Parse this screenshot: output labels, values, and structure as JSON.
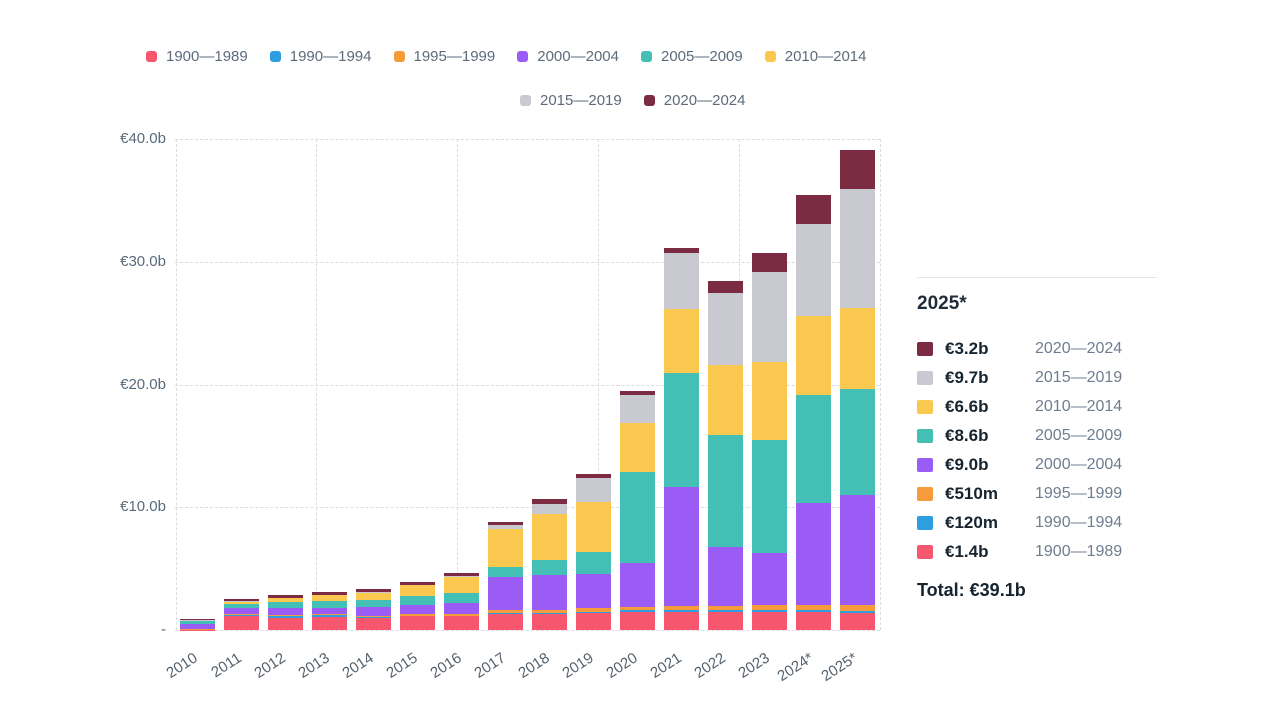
{
  "chart_data": {
    "type": "bar",
    "stacked": true,
    "unit": "EUR (billions)",
    "categories": [
      "2010",
      "2011",
      "2012",
      "2013",
      "2014",
      "2015",
      "2016",
      "2017",
      "2018",
      "2019",
      "2020",
      "2021",
      "2022",
      "2023",
      "2024*",
      "2025*"
    ],
    "series": [
      {
        "name": "1900—1989",
        "color": "#f7566f",
        "values": [
          0.03,
          1.1,
          1.0,
          1.05,
          0.95,
          1.1,
          1.1,
          1.3,
          1.3,
          1.4,
          1.5,
          1.5,
          1.5,
          1.5,
          1.5,
          1.4
        ]
      },
      {
        "name": "1990—1994",
        "color": "#2d9ee0",
        "values": [
          0.01,
          0.15,
          0.18,
          0.18,
          0.15,
          0.08,
          0.08,
          0.08,
          0.08,
          0.1,
          0.1,
          0.12,
          0.12,
          0.12,
          0.12,
          0.12
        ]
      },
      {
        "name": "1995—1999",
        "color": "#f69b3c",
        "values": [
          0.02,
          0.05,
          0.05,
          0.05,
          0.08,
          0.1,
          0.12,
          0.25,
          0.25,
          0.27,
          0.3,
          0.35,
          0.35,
          0.45,
          0.45,
          0.51
        ]
      },
      {
        "name": "2000—2004",
        "color": "#9b5cf5",
        "values": [
          0.45,
          0.5,
          0.6,
          0.55,
          0.73,
          0.73,
          0.9,
          2.66,
          2.85,
          2.8,
          3.6,
          9.7,
          4.8,
          4.2,
          8.3,
          9.0
        ]
      },
      {
        "name": "2005—2009",
        "color": "#43bfb5",
        "values": [
          0.22,
          0.35,
          0.45,
          0.5,
          0.57,
          0.73,
          0.82,
          0.87,
          1.25,
          1.78,
          7.4,
          9.3,
          9.1,
          9.25,
          8.76,
          8.6
        ]
      },
      {
        "name": "2010—2014",
        "color": "#fbc84f",
        "values": [
          0.02,
          0.15,
          0.3,
          0.5,
          0.57,
          0.9,
          1.3,
          3.05,
          3.7,
          4.1,
          3.94,
          5.17,
          5.7,
          6.3,
          6.42,
          6.6
        ]
      },
      {
        "name": "2015—2019",
        "color": "#c9c9d1",
        "values": [
          0.08,
          0.05,
          0.05,
          0.05,
          0.06,
          0.06,
          0.08,
          0.35,
          0.87,
          1.9,
          2.3,
          4.57,
          5.85,
          7.35,
          7.55,
          9.7
        ]
      },
      {
        "name": "2020—2024",
        "color": "#7b2c42",
        "values": [
          0.08,
          0.2,
          0.22,
          0.24,
          0.24,
          0.24,
          0.24,
          0.27,
          0.36,
          0.38,
          0.35,
          0.4,
          1.0,
          1.55,
          2.36,
          3.2
        ]
      }
    ],
    "title": "",
    "xlabel": "",
    "ylabel": "",
    "ylim": [
      0,
      40
    ],
    "y_ticks": [
      {
        "label": "€40.0b",
        "value": 40
      },
      {
        "label": "€30.0b",
        "value": 30
      },
      {
        "label": "€20.0b",
        "value": 20
      },
      {
        "label": "€10.0b",
        "value": 10
      },
      {
        "label": "-",
        "value": 0
      }
    ],
    "grid": "dashed",
    "legend_position": "top"
  },
  "legend": {
    "rows": [
      [
        "1900—1989",
        "1990—1994",
        "1995—1999",
        "2000—2004",
        "2005—2009",
        "2010—2014"
      ],
      [
        "2015—2019",
        "2020—2024"
      ]
    ]
  },
  "detail_panel": {
    "title": "2025*",
    "rows": [
      {
        "value": "€3.2b",
        "era": "2020—2024",
        "color": "#7b2c42"
      },
      {
        "value": "€9.7b",
        "era": "2015—2019",
        "color": "#c9c9d1"
      },
      {
        "value": "€6.6b",
        "era": "2010—2014",
        "color": "#fbc84f"
      },
      {
        "value": "€8.6b",
        "era": "2005—2009",
        "color": "#43bfb5"
      },
      {
        "value": "€9.0b",
        "era": "2000—2004",
        "color": "#9b5cf5"
      },
      {
        "value": "€510m",
        "era": "1995—1999",
        "color": "#f69b3c"
      },
      {
        "value": "€120m",
        "era": "1990—1994",
        "color": "#2d9ee0"
      },
      {
        "value": "€1.4b",
        "era": "1900—1989",
        "color": "#f7566f"
      }
    ],
    "total_label": "Total: €39.1b"
  }
}
